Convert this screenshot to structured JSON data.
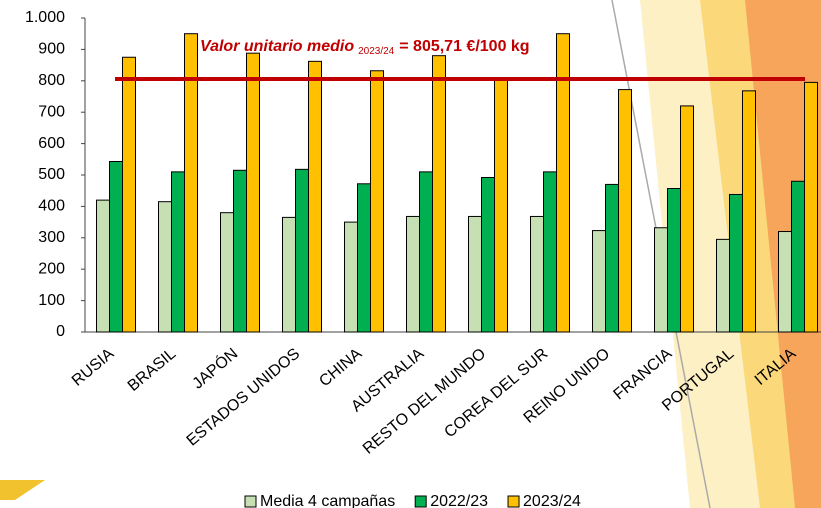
{
  "chart_data": {
    "type": "bar",
    "categories": [
      "RUSIA",
      "BRASIL",
      "JAPÓN",
      "ESTADOS UNIDOS",
      "CHINA",
      "AUSTRALIA",
      "RESTO DEL MUNDO",
      "COREA DEL SUR",
      "REINO UNIDO",
      "FRANCIA",
      "PORTUGAL",
      "ITALIA"
    ],
    "series": [
      {
        "name": "Media 4 campañas",
        "color": "#c6e0b4",
        "values": [
          420,
          415,
          380,
          365,
          350,
          368,
          368,
          368,
          323,
          332,
          295,
          320
        ]
      },
      {
        "name": "2022/23",
        "color": "#00b050",
        "values": [
          543,
          510,
          515,
          518,
          472,
          510,
          492,
          510,
          470,
          457,
          438,
          480
        ]
      },
      {
        "name": "2023/24",
        "color": "#ffc000",
        "values": [
          875,
          950,
          888,
          862,
          832,
          880,
          805,
          950,
          772,
          720,
          768,
          795
        ]
      }
    ],
    "reference_line": {
      "value": 805.71,
      "color": "#c00000"
    },
    "annotation": {
      "text": "Valor unitario medio",
      "subscript": "2023/24",
      "suffix": "= 805,71 €/100 kg"
    },
    "ylim": [
      0,
      1000
    ],
    "yticks": [
      0,
      100,
      200,
      300,
      400,
      500,
      600,
      700,
      800,
      900,
      {
        "value": 1000,
        "label": "1.000"
      }
    ]
  }
}
